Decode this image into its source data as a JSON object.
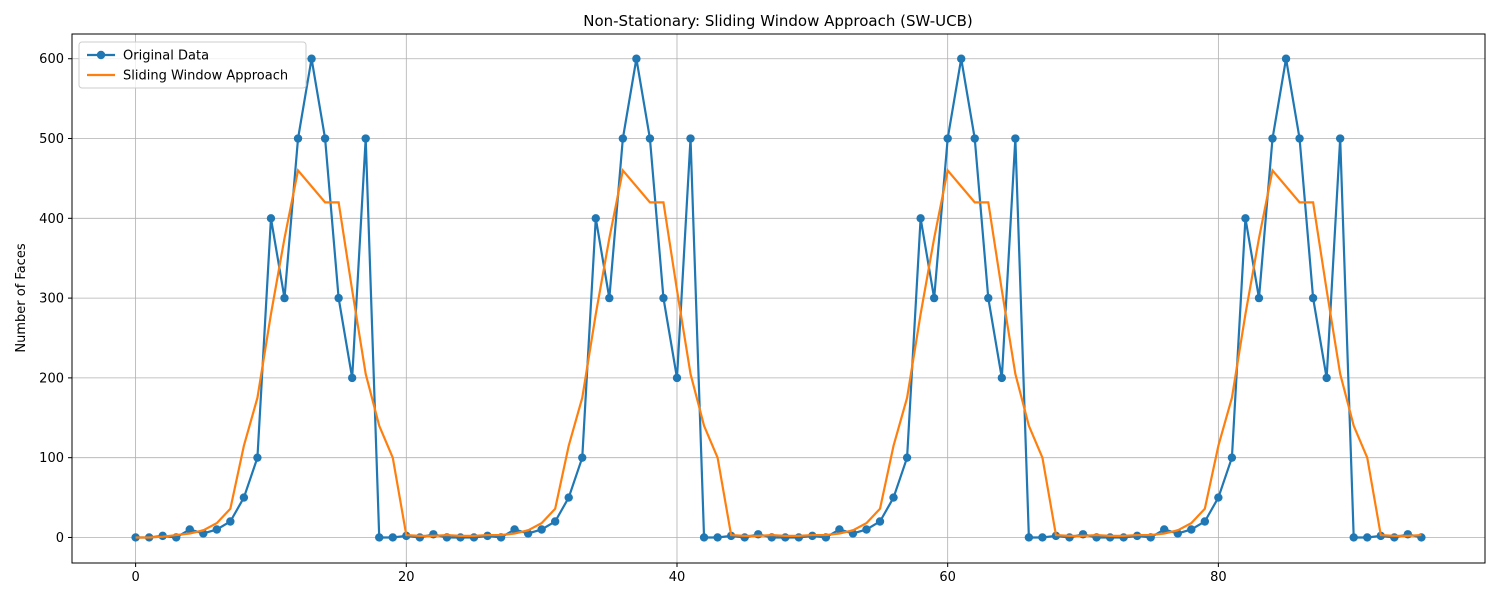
{
  "chart_data": {
    "type": "line",
    "title": "Non-Stationary: Sliding Window Approach (SW-UCB)",
    "y_label": "Number of Faces",
    "x": [
      0,
      1,
      2,
      3,
      4,
      5,
      6,
      7,
      8,
      9,
      10,
      11,
      12,
      13,
      14,
      15,
      16,
      17,
      18,
      19,
      20,
      21,
      22,
      23,
      24,
      25,
      26,
      27,
      28,
      29,
      30,
      31,
      32,
      33,
      34,
      35,
      36,
      37,
      38,
      39,
      40,
      41,
      42,
      43,
      44,
      45,
      46,
      47,
      48,
      49,
      50,
      51,
      52,
      53,
      54,
      55,
      56,
      57,
      58,
      59,
      60,
      61,
      62,
      63,
      64,
      65,
      66,
      67,
      68,
      69,
      70,
      71,
      72,
      73,
      74,
      75,
      76,
      77,
      78,
      79,
      80,
      81,
      82,
      83,
      84,
      85,
      86,
      87,
      88,
      89,
      90,
      91,
      92,
      93,
      94,
      95
    ],
    "series": [
      {
        "name": "Original Data",
        "color": "#1f77b4",
        "markers": true,
        "values": [
          0,
          0,
          2,
          0,
          10,
          5,
          10,
          20,
          50,
          100,
          400,
          300,
          500,
          600,
          500,
          300,
          200,
          500,
          0,
          0,
          2,
          0,
          4,
          0,
          0,
          0,
          2,
          0,
          10,
          5,
          10,
          20,
          50,
          100,
          400,
          300,
          500,
          600,
          500,
          300,
          200,
          500,
          0,
          0,
          2,
          0,
          4,
          0,
          0,
          0,
          2,
          0,
          10,
          5,
          10,
          20,
          50,
          100,
          400,
          300,
          500,
          600,
          500,
          300,
          200,
          500,
          0,
          0,
          2,
          0,
          4,
          0,
          0,
          0,
          2,
          0,
          10,
          5,
          10,
          20,
          50,
          100,
          400,
          300,
          500,
          600,
          500,
          300,
          200,
          500,
          0,
          0,
          2,
          0,
          4,
          0
        ]
      },
      {
        "name": "Sliding Window Approach",
        "color": "#ff7f0e",
        "markers": false,
        "values": [
          0,
          0,
          1,
          3,
          5,
          9,
          18,
          36,
          115,
          175,
          280,
          375,
          460,
          440,
          420,
          420,
          310,
          205,
          140,
          100,
          3,
          2,
          2,
          3,
          2,
          2,
          3,
          3,
          5,
          9,
          18,
          36,
          115,
          175,
          280,
          375,
          460,
          440,
          420,
          420,
          310,
          205,
          140,
          100,
          3,
          2,
          2,
          3,
          2,
          2,
          3,
          3,
          5,
          9,
          18,
          36,
          115,
          175,
          280,
          375,
          460,
          440,
          420,
          420,
          310,
          205,
          140,
          100,
          3,
          2,
          2,
          3,
          2,
          2,
          3,
          3,
          5,
          9,
          18,
          36,
          115,
          175,
          280,
          375,
          460,
          440,
          420,
          420,
          310,
          205,
          140,
          100,
          3,
          2,
          2,
          3
        ]
      }
    ],
    "xlim": [
      -4.7,
      99.7
    ],
    "ylim": [
      -32,
      631
    ],
    "xticks": [
      0,
      20,
      40,
      60,
      80
    ],
    "yticks": [
      0,
      100,
      200,
      300,
      400,
      500,
      600
    ],
    "grid": true,
    "legend": "upper-left"
  }
}
